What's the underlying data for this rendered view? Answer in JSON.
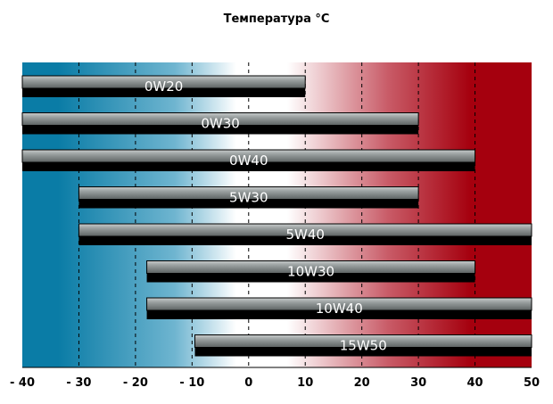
{
  "chart_data": {
    "type": "bar",
    "orientation": "horizontal-range",
    "title": "Температура  °C",
    "xlabel": "",
    "ylabel": "",
    "xlim": [
      -40,
      50
    ],
    "x_ticks": [
      -40,
      -30,
      -20,
      -10,
      0,
      10,
      20,
      30,
      40,
      50
    ],
    "x_tick_labels": [
      "- 40",
      "- 30",
      "- 20",
      "- 10",
      "0",
      "10",
      "20",
      "30",
      "40",
      "50"
    ],
    "grid": "vertical-dashed",
    "background_gradient": {
      "cold": "#0a7ca6",
      "neutral": "#ffffff",
      "hot": "#a5000e"
    },
    "categories": [
      "0W20",
      "0W30",
      "0W40",
      "5W30",
      "5W40",
      "10W30",
      "10W40",
      "15W50"
    ],
    "ranges": [
      {
        "label": "0W20",
        "min": -40,
        "max": 10
      },
      {
        "label": "0W30",
        "min": -40,
        "max": 30
      },
      {
        "label": "0W40",
        "min": -40,
        "max": 40
      },
      {
        "label": "5W30",
        "min": -30,
        "max": 30
      },
      {
        "label": "5W40",
        "min": -30,
        "max": 50
      },
      {
        "label": "10W30",
        "min": -18,
        "max": 40
      },
      {
        "label": "10W40",
        "min": -18,
        "max": 50
      },
      {
        "label": "15W50",
        "min": -9.5,
        "max": 50
      }
    ]
  }
}
